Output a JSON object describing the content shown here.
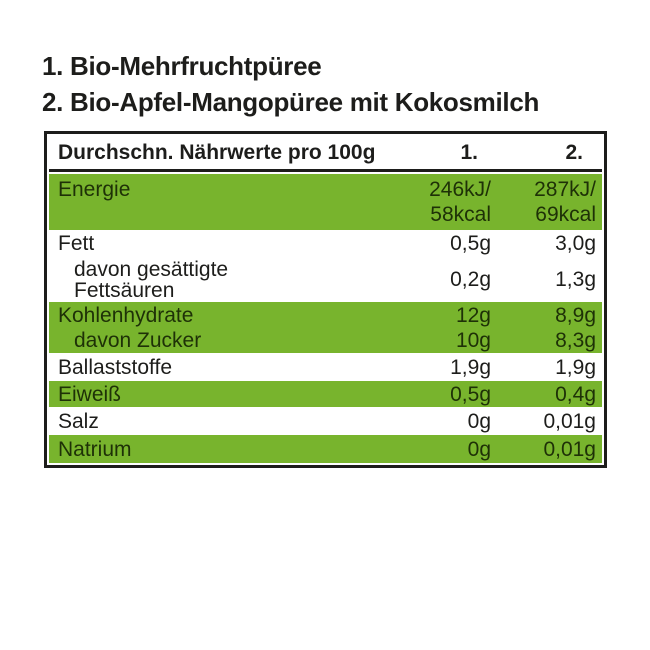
{
  "titles": [
    "1. Bio-Mehrfruchtpüree",
    "2. Bio-Apfel-Mangopüree mit Kokosmilch"
  ],
  "table": {
    "header": {
      "label": "Durchschn. Nährwerte pro 100g",
      "col1": "1.",
      "col2": "2."
    },
    "rows": [
      {
        "label": "Energie",
        "v1": "246kJ/\n58kcal",
        "v2": "287kJ/\n69kcal"
      },
      {
        "label": "Fett",
        "v1": "0,5g",
        "v2": "3,0g"
      },
      {
        "label": "davon gesättigte\nFettsäuren",
        "v1": "0,2g",
        "v2": "1,3g"
      },
      {
        "label": "Kohlenhydrate",
        "v1": "12g",
        "v2": "8,9g"
      },
      {
        "label": "davon Zucker",
        "v1": "10g",
        "v2": "8,3g"
      },
      {
        "label": "Ballaststoffe",
        "v1": "1,9g",
        "v2": "1,9g"
      },
      {
        "label": "Eiweiß",
        "v1": "0,5g",
        "v2": "0,4g"
      },
      {
        "label": "Salz",
        "v1": "0g",
        "v2": "0,01g"
      },
      {
        "label": "Natrium",
        "v1": "0g",
        "v2": "0,01g"
      }
    ]
  },
  "colors": {
    "green": "#78b42d",
    "dark-green": "#1e3107",
    "ink": "#1d1d1b",
    "paper": "#ffffff"
  }
}
